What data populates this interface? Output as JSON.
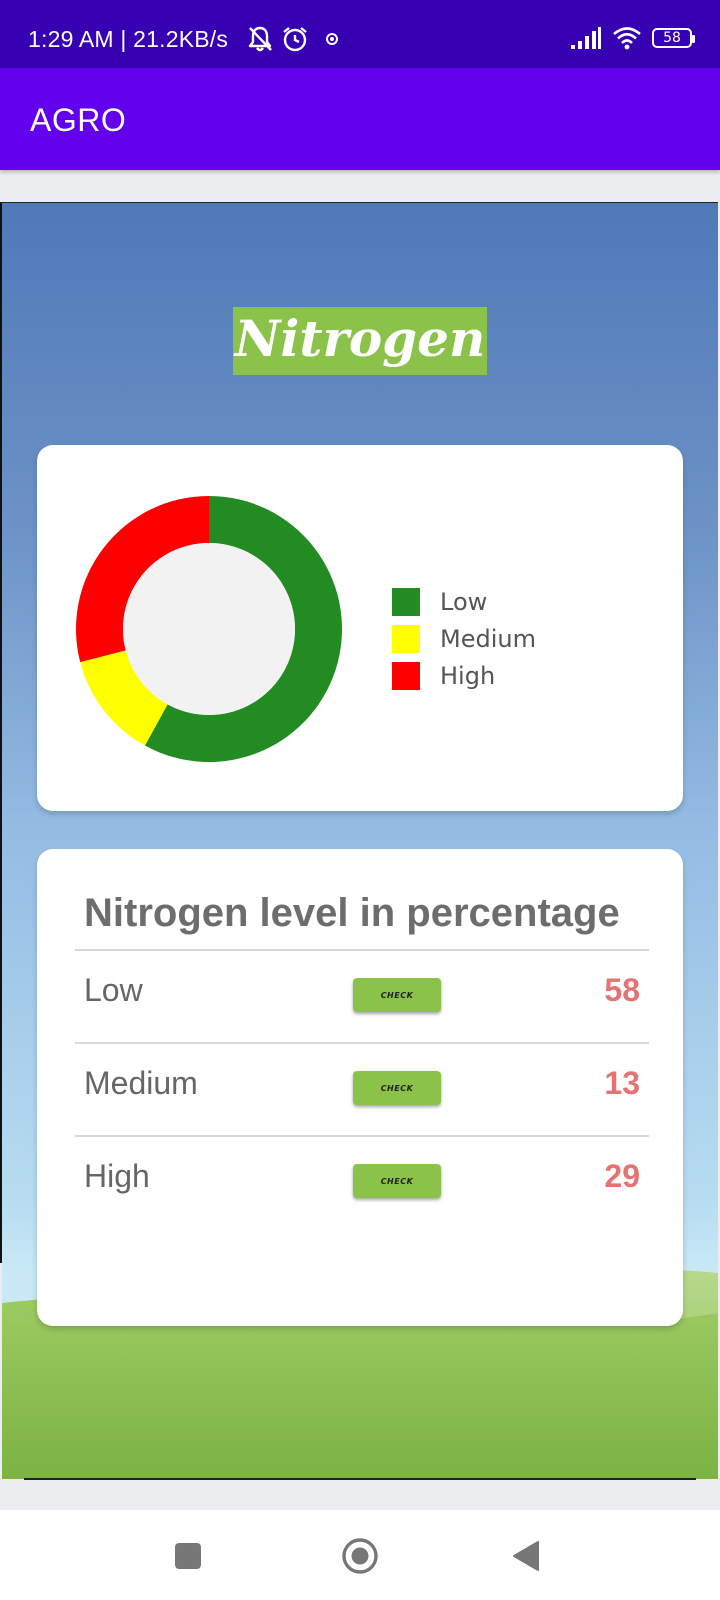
{
  "status_bar": {
    "time": "1:29 AM | 21.2KB/s",
    "battery": "58",
    "icons": [
      "bell-off-icon",
      "alarm-icon",
      "dot-icon",
      "signal-icon",
      "wifi-icon",
      "battery-icon"
    ]
  },
  "app_bar": {
    "title": "AGRO"
  },
  "heading": "Nitrogen",
  "chart_data": {
    "type": "pie",
    "categories": [
      "Low",
      "Medium",
      "High"
    ],
    "values": [
      58,
      13,
      29
    ],
    "colors": [
      "#228b22",
      "#ffff00",
      "#ff0000"
    ],
    "legend_position": "right"
  },
  "legend": [
    {
      "label": "Low",
      "color": "#228b22"
    },
    {
      "label": "Medium",
      "color": "#ffff00"
    },
    {
      "label": "High",
      "color": "#ff0000"
    }
  ],
  "table": {
    "title": "Nitrogen level in percentage",
    "rows": [
      {
        "label": "Low",
        "button": "CHECK",
        "value": "58"
      },
      {
        "label": "Medium",
        "button": "CHECK",
        "value": "13"
      },
      {
        "label": "High",
        "button": "CHECK",
        "value": "29"
      }
    ]
  },
  "nav_bar": {
    "buttons": [
      "recents-square-icon",
      "home-circle-icon",
      "back-triangle-icon"
    ]
  },
  "colors": {
    "status_bar": "#3700b3",
    "app_bar": "#6200ee",
    "accent_green": "#8bc34a",
    "value_red": "#e57373"
  }
}
